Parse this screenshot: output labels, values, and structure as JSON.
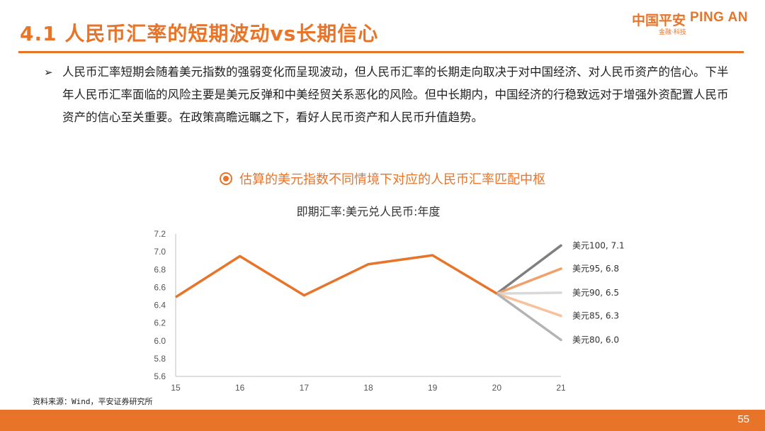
{
  "header": {
    "title": "4.1 人民币汇率的短期波动vs长期信心",
    "logo_cn": "中国平安",
    "logo_en": "PING AN",
    "logo_sub": "金融·科技"
  },
  "content": {
    "bullet_mark": "➢",
    "bullet_text": "人民币汇率短期会随着美元指数的强弱变化而呈现波动，但人民币汇率的长期走向取决于对中国经济、对人民币资产的信心。下半年人民币汇率面临的风险主要是美元反弹和中美经贸关系恶化的风险。但中长期内，中国经济的行稳致远对于增强外资配置人民币资产的信心至关重要。在政策高瞻远瞩之下，看好人民币资产和人民币升值趋势。"
  },
  "chart_heading": "估算的美元指数不同情境下对应的人民币汇率匹配中枢",
  "chart_data": {
    "type": "line",
    "title": "即期汇率:美元兑人民币:年度",
    "x": [
      "15",
      "16",
      "17",
      "18",
      "19",
      "20",
      "21"
    ],
    "ylim": [
      5.6,
      7.2
    ],
    "yticks": [
      "7.2",
      "7.0",
      "6.8",
      "6.6",
      "6.4",
      "6.2",
      "6.0",
      "5.8",
      "5.6"
    ],
    "series": [
      {
        "values": [
          6.49,
          6.95,
          6.51,
          6.86,
          6.96,
          6.53,
          null
        ],
        "color": "#e8742a"
      }
    ],
    "scenarios": [
      {
        "label": "美元100, 7.1",
        "from": 6.53,
        "to": 7.07,
        "color": "#7f7f7f"
      },
      {
        "label": "美元95, 6.8",
        "from": 6.53,
        "to": 6.81,
        "color": "#f0a06a"
      },
      {
        "label": "美元90, 6.5",
        "from": 6.53,
        "to": 6.54,
        "color": "#d9d9d9"
      },
      {
        "label": "美元85, 6.3",
        "from": 6.53,
        "to": 6.28,
        "color": "#f6c29c"
      },
      {
        "label": "美元80, 6.0",
        "from": 6.53,
        "to": 6.01,
        "color": "#b3b3b3"
      }
    ],
    "grid": false,
    "legend": "none"
  },
  "footer": {
    "source": "资料来源：Wind，平安证券研究所",
    "page_number": "55"
  }
}
